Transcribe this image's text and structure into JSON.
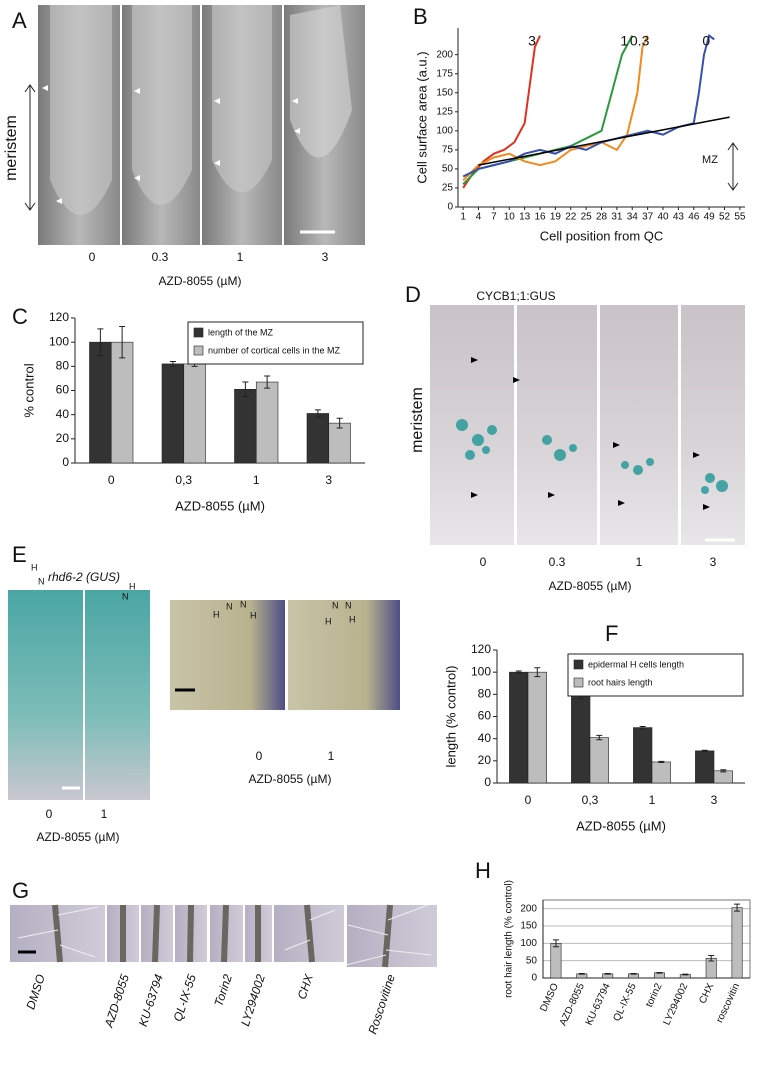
{
  "panels": {
    "A": {
      "label": "A",
      "side_label": "meristem",
      "sublabels": [
        "0",
        "0.3",
        "1",
        "3"
      ],
      "xlabel": "AZD-8055 (µM)"
    },
    "D": {
      "label": "D",
      "title": "CYCB1;1:GUS",
      "side_label": "meristem",
      "sublabels": [
        "0",
        "0.3",
        "1",
        "3"
      ],
      "xlabel": "AZD-8055 (µM)"
    },
    "E": {
      "label": "E",
      "title": "rhd6-2 (GUS)",
      "image_labels": [
        "H",
        "N",
        "N",
        "H"
      ],
      "zoom_labels": [
        "H",
        "N",
        "N",
        "H",
        "H",
        "N",
        "N",
        "H"
      ],
      "sublabels_left": [
        "0",
        "1"
      ],
      "xlabel_left": "AZD-8055 (µM)",
      "sublabels_right": [
        "0",
        "1"
      ],
      "xlabel_right": "AZD-8055 (µM)"
    },
    "G": {
      "label": "G",
      "treatments": [
        "DMSO",
        "AZD-8055",
        "KU-63794",
        "QL-IX-55",
        "Torin2",
        "LY294002",
        "CHX",
        "Roscovitine"
      ]
    }
  },
  "chart_data": [
    {
      "type": "line",
      "panel": "B",
      "xlabel": "Cell position from QC",
      "ylabel": "Cell surface area (a.u.)",
      "xlim": [
        0,
        56
      ],
      "xticks": [
        1,
        4,
        7,
        10,
        13,
        16,
        19,
        22,
        25,
        28,
        31,
        34,
        37,
        40,
        43,
        46,
        49,
        52,
        55
      ],
      "ylim": [
        0,
        235
      ],
      "yticks": [
        0,
        25,
        50,
        75,
        100,
        125,
        150,
        175,
        200
      ],
      "series": [
        {
          "name": "3",
          "color": "#e0301e",
          "x": [
            1,
            3,
            5,
            7,
            9,
            11,
            13,
            14,
            15,
            16
          ],
          "values": [
            25,
            45,
            60,
            70,
            75,
            85,
            110,
            160,
            210,
            225
          ]
        },
        {
          "name": "1",
          "color": "#2a9a3a",
          "x": [
            1,
            4,
            7,
            10,
            13,
            16,
            19,
            22,
            25,
            28,
            30,
            32,
            34
          ],
          "values": [
            30,
            50,
            55,
            60,
            65,
            70,
            75,
            80,
            90,
            100,
            150,
            200,
            225
          ]
        },
        {
          "name": "0.3",
          "color": "#f08a1c",
          "x": [
            1,
            4,
            7,
            10,
            13,
            16,
            19,
            22,
            25,
            28,
            31,
            33,
            35,
            36,
            37
          ],
          "values": [
            35,
            55,
            65,
            70,
            60,
            55,
            60,
            75,
            80,
            85,
            75,
            95,
            150,
            210,
            225
          ]
        },
        {
          "name": "0",
          "color": "#3550b0",
          "x": [
            1,
            4,
            7,
            10,
            13,
            16,
            19,
            22,
            25,
            28,
            31,
            34,
            37,
            40,
            43,
            46,
            47,
            48,
            49,
            50
          ],
          "values": [
            40,
            50,
            55,
            60,
            70,
            75,
            70,
            80,
            75,
            85,
            90,
            95,
            100,
            95,
            105,
            110,
            150,
            200,
            225,
            220
          ]
        }
      ],
      "trend": {
        "color": "#000000",
        "x": [
          4,
          53
        ],
        "values": [
          55,
          118
        ]
      },
      "annotation": "MZ"
    },
    {
      "type": "bar",
      "panel": "C",
      "xlabel": "AZD-8055 (µM)",
      "ylabel": "% control",
      "categories": [
        "0",
        "0,3",
        "1",
        "3"
      ],
      "ylim": [
        0,
        120
      ],
      "yticks": [
        0,
        20,
        40,
        60,
        80,
        100,
        120
      ],
      "grid": false,
      "series": [
        {
          "name": "length of the MZ",
          "color": "#333333",
          "values": [
            100,
            82,
            61,
            41
          ],
          "errors": [
            11,
            2,
            6,
            3
          ]
        },
        {
          "name": "number of cortical cells in the MZ",
          "color": "#bdbdbd",
          "values": [
            100,
            82,
            67,
            33
          ],
          "errors": [
            13,
            2,
            5,
            4
          ]
        }
      ]
    },
    {
      "type": "bar",
      "panel": "F",
      "xlabel": "AZD-8055 (µM)",
      "ylabel": "length (% control)",
      "categories": [
        "0",
        "0,3",
        "1",
        "3"
      ],
      "ylim": [
        0,
        120
      ],
      "yticks": [
        0,
        20,
        40,
        60,
        80,
        100,
        120
      ],
      "grid": false,
      "series": [
        {
          "name": "epidermal H cells length",
          "color": "#333333",
          "values": [
            100,
            78,
            50,
            29
          ],
          "errors": [
            1,
            2,
            1,
            0.5
          ]
        },
        {
          "name": "root hairs length",
          "color": "#bdbdbd",
          "values": [
            100,
            41,
            19,
            11
          ],
          "errors": [
            4,
            2,
            0.5,
            1
          ]
        }
      ]
    },
    {
      "type": "bar",
      "panel": "H",
      "ylabel": "root hair length (% control)",
      "categories": [
        "DMSO",
        "AZD-8055",
        "KU-63794",
        "QL-IX-55",
        "torin2",
        "LY294002",
        "CHX",
        "roscovitin"
      ],
      "ylim": [
        0,
        225
      ],
      "yticks": [
        0,
        50,
        100,
        150,
        200
      ],
      "grid": true,
      "series": [
        {
          "color": "#bdbdbd",
          "values": [
            100,
            12,
            12,
            12,
            15,
            10,
            57,
            203
          ],
          "errors": [
            10,
            1,
            1,
            1,
            1,
            1,
            8,
            10
          ]
        }
      ]
    }
  ]
}
